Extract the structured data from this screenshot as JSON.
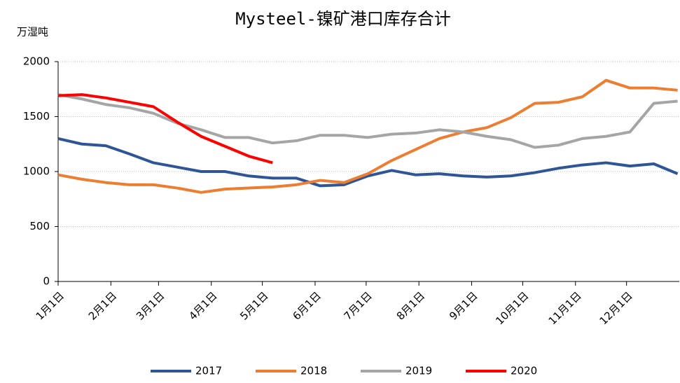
{
  "chart_data": {
    "type": "line",
    "title": "Mysteel-镍矿港口库存合计",
    "y_label": "万湿吨",
    "x": [
      0,
      14,
      28,
      42,
      56,
      70,
      84,
      98,
      112,
      126,
      140,
      154,
      168,
      182,
      196,
      210,
      224,
      238,
      252,
      266,
      280,
      294,
      308,
      322,
      336,
      350,
      364
    ],
    "xlim": [
      0,
      365
    ],
    "xticks": [
      {
        "value": 0,
        "label": "1月1日"
      },
      {
        "value": 31,
        "label": "2月1日"
      },
      {
        "value": 59,
        "label": "3月1日"
      },
      {
        "value": 90,
        "label": "4月1日"
      },
      {
        "value": 120,
        "label": "5月1日"
      },
      {
        "value": 151,
        "label": "6月1日"
      },
      {
        "value": 181,
        "label": "7月1日"
      },
      {
        "value": 212,
        "label": "8月1日"
      },
      {
        "value": 243,
        "label": "9月1日"
      },
      {
        "value": 273,
        "label": "10月1日"
      },
      {
        "value": 304,
        "label": "11月1日"
      },
      {
        "value": 334,
        "label": "12月1日"
      }
    ],
    "ylim": [
      0,
      2000
    ],
    "yticks": [
      0,
      500,
      1000,
      1500,
      2000
    ],
    "grid": true,
    "legend": "bottom",
    "series": [
      {
        "name": "2017",
        "color": "#2e5597",
        "values": [
          1300,
          1250,
          1235,
          1160,
          1080,
          1040,
          1000,
          1000,
          960,
          940,
          940,
          870,
          880,
          960,
          1010,
          970,
          980,
          960,
          950,
          960,
          990,
          1030,
          1060,
          1080,
          1050,
          1070,
          980
        ]
      },
      {
        "name": "2018",
        "color": "#ed7d31",
        "values": [
          970,
          930,
          900,
          880,
          880,
          850,
          810,
          840,
          850,
          860,
          880,
          920,
          900,
          980,
          1100,
          1200,
          1300,
          1360,
          1400,
          1490,
          1620,
          1630,
          1680,
          1830,
          1760,
          1760,
          1740
        ]
      },
      {
        "name": "2019",
        "color": "#a5a5a5",
        "values": [
          1700,
          1660,
          1610,
          1580,
          1530,
          1440,
          1380,
          1310,
          1310,
          1260,
          1280,
          1330,
          1330,
          1310,
          1340,
          1350,
          1380,
          1360,
          1320,
          1290,
          1220,
          1240,
          1300,
          1320,
          1360,
          1620,
          1640
        ]
      },
      {
        "name": "2020",
        "color": "#ff0000",
        "values": [
          1690,
          1700,
          1670,
          1630,
          1590,
          1450,
          1320,
          1230,
          1140,
          1080,
          null,
          null,
          null,
          null,
          null,
          null,
          null,
          null,
          null,
          null,
          null,
          null,
          null,
          null,
          null,
          null,
          null
        ]
      }
    ]
  }
}
